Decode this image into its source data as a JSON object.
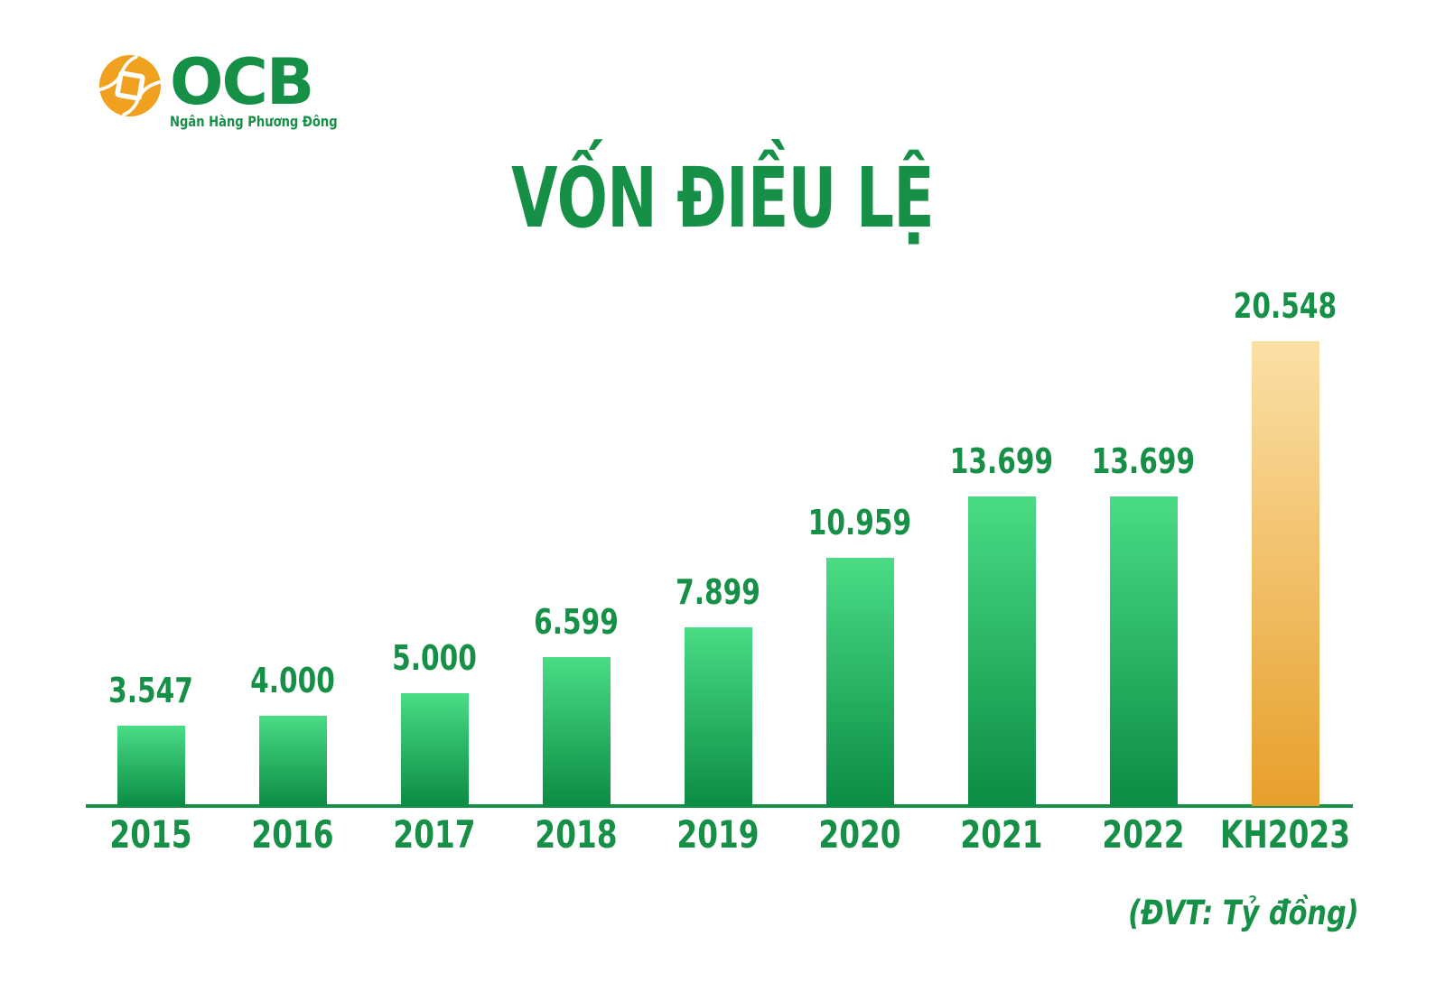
{
  "logo": {
    "brand": "OCB",
    "subtitle": "Ngân Hàng Phương Đông"
  },
  "colors": {
    "text_green": "#168F47",
    "bar_green_top": "#4ADC85",
    "bar_green_bottom": "#0B8C44",
    "bar_orange_top": "#FBE0A6",
    "bar_orange_bottom": "#E79F2B",
    "axis": "#168F47",
    "logo_orange": "#EFA11F"
  },
  "chart_data": {
    "type": "bar",
    "title": "VỐN ĐIỀU LỆ",
    "unit_note": "(ĐVT: Tỷ đồng)",
    "categories": [
      "2015",
      "2016",
      "2017",
      "2018",
      "2019",
      "2020",
      "2021",
      "2022",
      "KH2023"
    ],
    "values": [
      3547,
      4000,
      5000,
      6599,
      7899,
      10959,
      13699,
      13699,
      20548
    ],
    "value_labels": [
      "3.547",
      "4.000",
      "5.000",
      "6.599",
      "7.899",
      "10.959",
      "13.699",
      "13.699",
      "20.548"
    ],
    "highlight_category": "KH2023",
    "series_color_note": "green gradient bars; plan-year KH2023 bar is orange gradient",
    "ylim": [
      0,
      20548
    ],
    "grid": false,
    "legend": "none",
    "value_labels_position": "above-bars",
    "xlabel": "",
    "ylabel": ""
  }
}
